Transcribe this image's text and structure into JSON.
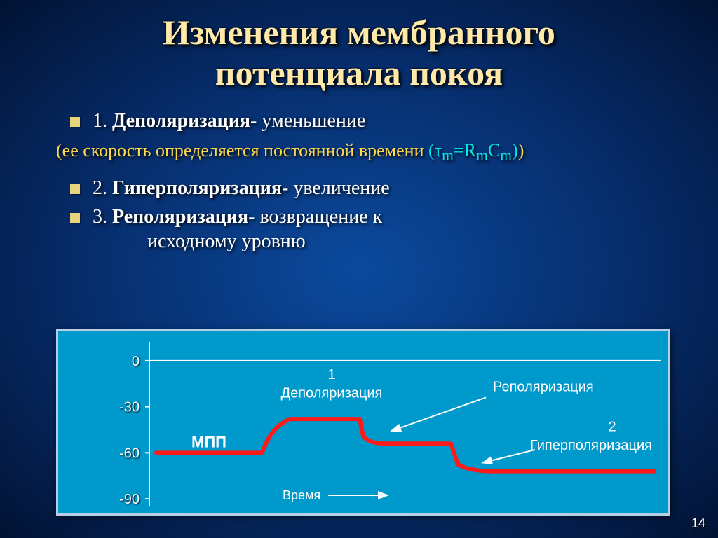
{
  "title_line1": "Изменения мембранного",
  "title_line2": "потенциала покоя",
  "bullets": {
    "b1_num": "1. ",
    "b1_bold": "Деполяризация",
    "b1_rest": "- уменьшение",
    "b2_num": "2. ",
    "b2_bold": "Гиперполяризация",
    "b2_rest": "- увеличение",
    "b3_num": "3. ",
    "b3_bold": "Реполяризация",
    "b3_rest": "- возвращение к",
    "b3_cont": "исходному уровню"
  },
  "paren": {
    "open": "(",
    "yellow_text": "ее скорость определяется постоянной времени ",
    "cyan_formula_pre": "(",
    "cyan_tau": "τ",
    "cyan_sub1": "m",
    "cyan_eq": "=R",
    "cyan_sub2": "m",
    "cyan_c": "C",
    "cyan_sub3": "m",
    "cyan_close": ")",
    "close": ")"
  },
  "chart": {
    "background": "#0099cc",
    "border": "#b7cfe5",
    "axis_color": "#ffffff",
    "line_color": "#ff1a1a",
    "line_width": 6,
    "yticks": [
      {
        "label": "0",
        "value": 0
      },
      {
        "label": "-30",
        "value": -30
      },
      {
        "label": "-60",
        "value": -60
      },
      {
        "label": "-90",
        "value": -90
      }
    ],
    "ylim_top": 10,
    "ylim_bottom": -95,
    "mpp_label": "МПП",
    "mpp_value": -60,
    "depol_title_num": "1",
    "depol_title": "Деполяризация",
    "repol_title": "Реполяризация",
    "hyper_title_num": "2",
    "hyper_title": "Гиперполяризация",
    "x_label": "Время",
    "font_size_ticks": 20,
    "font_size_labels": 20
  },
  "page_number": "14"
}
